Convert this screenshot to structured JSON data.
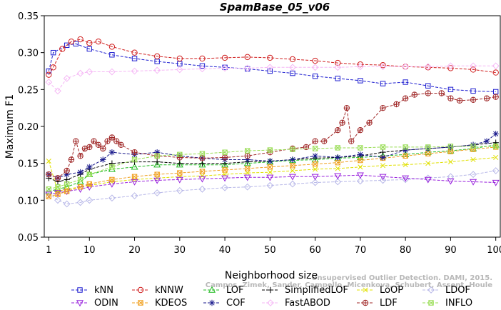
{
  "chart_data": {
    "type": "line",
    "title": "SpamBase_05_v06",
    "xlabel": "Neighborhood size",
    "ylabel": "Maximum F1",
    "xlim": [
      0,
      101
    ],
    "ylim": [
      0.05,
      0.35
    ],
    "x_ticks": [
      1,
      10,
      20,
      30,
      40,
      50,
      60,
      70,
      80,
      90,
      100
    ],
    "y_ticks": [
      0.05,
      0.1,
      0.15,
      0.2,
      0.25,
      0.3,
      0.35
    ],
    "grid": false,
    "legend_position": "bottom",
    "watermark": [
      "Campos, Zimek, Sander, Campello, Micenkova, Schubert, Assent, Houle",
      "Unsupervised Outlier Detection. DAMI, 2015."
    ],
    "series": [
      {
        "name": "kNN",
        "color": "#1f1fd0",
        "marker": "square",
        "x": [
          1,
          2,
          5,
          7,
          10,
          15,
          20,
          25,
          30,
          35,
          40,
          45,
          50,
          55,
          60,
          65,
          70,
          75,
          80,
          85,
          90,
          95,
          100
        ],
        "y": [
          0.275,
          0.3,
          0.31,
          0.312,
          0.305,
          0.297,
          0.292,
          0.288,
          0.285,
          0.282,
          0.28,
          0.278,
          0.275,
          0.272,
          0.268,
          0.265,
          0.262,
          0.258,
          0.26,
          0.255,
          0.25,
          0.248,
          0.247
        ]
      },
      {
        "name": "kNNW",
        "color": "#d02020",
        "marker": "circle",
        "x": [
          1,
          2,
          4,
          6,
          8,
          10,
          12,
          15,
          20,
          25,
          30,
          35,
          40,
          45,
          50,
          55,
          60,
          65,
          70,
          75,
          80,
          85,
          90,
          95,
          100
        ],
        "y": [
          0.27,
          0.28,
          0.305,
          0.315,
          0.318,
          0.313,
          0.315,
          0.308,
          0.3,
          0.295,
          0.292,
          0.292,
          0.293,
          0.294,
          0.293,
          0.291,
          0.289,
          0.286,
          0.284,
          0.283,
          0.281,
          0.28,
          0.279,
          0.277,
          0.273
        ]
      },
      {
        "name": "LOF",
        "color": "#22bb22",
        "marker": "triangle-up",
        "x": [
          1,
          3,
          5,
          8,
          10,
          15,
          20,
          25,
          30,
          35,
          40,
          45,
          50,
          55,
          60,
          65,
          70,
          75,
          80,
          85,
          90,
          95,
          100
        ],
        "y": [
          0.112,
          0.115,
          0.118,
          0.125,
          0.135,
          0.142,
          0.145,
          0.148,
          0.148,
          0.148,
          0.148,
          0.15,
          0.152,
          0.154,
          0.155,
          0.157,
          0.158,
          0.16,
          0.162,
          0.165,
          0.167,
          0.17,
          0.175
        ]
      },
      {
        "name": "SimplifiedLOF",
        "color": "#000000",
        "marker": "plus",
        "x": [
          1,
          3,
          5,
          8,
          10,
          15,
          20,
          25,
          30,
          35,
          40,
          45,
          50,
          55,
          60,
          65,
          70,
          75,
          80,
          85,
          90,
          95,
          100
        ],
        "y": [
          0.13,
          0.125,
          0.128,
          0.135,
          0.142,
          0.15,
          0.152,
          0.152,
          0.15,
          0.15,
          0.15,
          0.152,
          0.153,
          0.155,
          0.157,
          0.158,
          0.16,
          0.165,
          0.168,
          0.17,
          0.172,
          0.175,
          0.178
        ]
      },
      {
        "name": "LoOP",
        "color": "#e0e000",
        "marker": "x",
        "x": [
          1,
          3,
          5,
          8,
          10,
          15,
          20,
          25,
          30,
          35,
          40,
          45,
          50,
          55,
          60,
          65,
          70,
          75,
          80,
          85,
          90,
          95,
          100
        ],
        "y": [
          0.153,
          0.112,
          0.115,
          0.118,
          0.12,
          0.125,
          0.128,
          0.13,
          0.132,
          0.133,
          0.135,
          0.137,
          0.138,
          0.14,
          0.142,
          0.143,
          0.145,
          0.147,
          0.148,
          0.15,
          0.152,
          0.155,
          0.158
        ]
      },
      {
        "name": "LDOF",
        "color": "#b8b8e8",
        "marker": "diamond",
        "x": [
          1,
          3,
          5,
          8,
          10,
          15,
          20,
          25,
          30,
          35,
          40,
          45,
          50,
          55,
          60,
          65,
          70,
          75,
          80,
          85,
          90,
          95,
          100
        ],
        "y": [
          0.11,
          0.1,
          0.095,
          0.097,
          0.1,
          0.103,
          0.106,
          0.11,
          0.113,
          0.115,
          0.117,
          0.118,
          0.12,
          0.122,
          0.124,
          0.125,
          0.126,
          0.127,
          0.128,
          0.13,
          0.132,
          0.135,
          0.14
        ]
      },
      {
        "name": "ODIN",
        "color": "#9922dd",
        "marker": "triangle-down",
        "x": [
          1,
          3,
          5,
          8,
          10,
          15,
          20,
          25,
          30,
          35,
          40,
          45,
          50,
          55,
          60,
          65,
          70,
          75,
          80,
          85,
          90,
          95,
          100
        ],
        "y": [
          0.108,
          0.11,
          0.112,
          0.115,
          0.118,
          0.122,
          0.125,
          0.127,
          0.128,
          0.129,
          0.13,
          0.131,
          0.131,
          0.132,
          0.132,
          0.133,
          0.134,
          0.132,
          0.13,
          0.128,
          0.126,
          0.125,
          0.124
        ]
      },
      {
        "name": "KDEOS",
        "color": "#f0a020",
        "marker": "square-x",
        "x": [
          1,
          3,
          5,
          8,
          10,
          15,
          20,
          25,
          30,
          35,
          40,
          45,
          50,
          55,
          60,
          65,
          70,
          75,
          80,
          85,
          90,
          95,
          100
        ],
        "y": [
          0.105,
          0.108,
          0.112,
          0.118,
          0.122,
          0.128,
          0.132,
          0.135,
          0.137,
          0.139,
          0.141,
          0.143,
          0.145,
          0.147,
          0.149,
          0.151,
          0.154,
          0.157,
          0.16,
          0.163,
          0.166,
          0.169,
          0.172
        ]
      },
      {
        "name": "COF",
        "color": "#1a1a8c",
        "marker": "asterisk",
        "x": [
          1,
          3,
          5,
          8,
          10,
          13,
          15,
          20,
          25,
          30,
          35,
          40,
          45,
          50,
          55,
          60,
          65,
          70,
          75,
          80,
          85,
          90,
          95,
          98,
          100
        ],
        "y": [
          0.135,
          0.13,
          0.135,
          0.138,
          0.145,
          0.155,
          0.165,
          0.162,
          0.165,
          0.16,
          0.157,
          0.155,
          0.155,
          0.153,
          0.155,
          0.16,
          0.158,
          0.162,
          0.158,
          0.168,
          0.17,
          0.172,
          0.175,
          0.18,
          0.19
        ]
      },
      {
        "name": "FastABOD",
        "color": "#f5b8f5",
        "marker": "diamond",
        "x": [
          1,
          3,
          5,
          8,
          10,
          15,
          20,
          25,
          30,
          35,
          40,
          45,
          50,
          55,
          60,
          65,
          70,
          75,
          80,
          85,
          90,
          95,
          100
        ],
        "y": [
          0.26,
          0.248,
          0.265,
          0.272,
          0.274,
          0.274,
          0.275,
          0.276,
          0.277,
          0.278,
          0.279,
          0.279,
          0.28,
          0.28,
          0.28,
          0.28,
          0.281,
          0.281,
          0.281,
          0.281,
          0.282,
          0.282,
          0.282
        ]
      },
      {
        "name": "LDF",
        "color": "#a02828",
        "marker": "circle-plus",
        "x": [
          1,
          3,
          5,
          6,
          7,
          8,
          9,
          10,
          11,
          12,
          13,
          14,
          15,
          16,
          17,
          20,
          25,
          30,
          35,
          40,
          45,
          50,
          55,
          58,
          60,
          62,
          65,
          66,
          67,
          68,
          70,
          72,
          75,
          78,
          80,
          82,
          85,
          88,
          90,
          92,
          95,
          98,
          100
        ],
        "y": [
          0.135,
          0.13,
          0.14,
          0.155,
          0.18,
          0.16,
          0.17,
          0.172,
          0.18,
          0.175,
          0.17,
          0.18,
          0.185,
          0.18,
          0.175,
          0.165,
          0.16,
          0.158,
          0.157,
          0.158,
          0.16,
          0.165,
          0.17,
          0.172,
          0.18,
          0.18,
          0.195,
          0.205,
          0.225,
          0.18,
          0.195,
          0.205,
          0.225,
          0.23,
          0.238,
          0.243,
          0.245,
          0.245,
          0.238,
          0.235,
          0.236,
          0.238,
          0.24
        ]
      },
      {
        "name": "INFLO",
        "color": "#99dd55",
        "marker": "hourglass",
        "x": [
          1,
          3,
          5,
          8,
          10,
          15,
          20,
          25,
          30,
          35,
          40,
          45,
          50,
          55,
          60,
          65,
          70,
          75,
          80,
          85,
          90,
          95,
          100
        ],
        "y": [
          0.115,
          0.118,
          0.122,
          0.128,
          0.135,
          0.145,
          0.155,
          0.16,
          0.162,
          0.163,
          0.165,
          0.167,
          0.168,
          0.169,
          0.17,
          0.171,
          0.171,
          0.172,
          0.172,
          0.172,
          0.173,
          0.173,
          0.173
        ]
      }
    ]
  }
}
